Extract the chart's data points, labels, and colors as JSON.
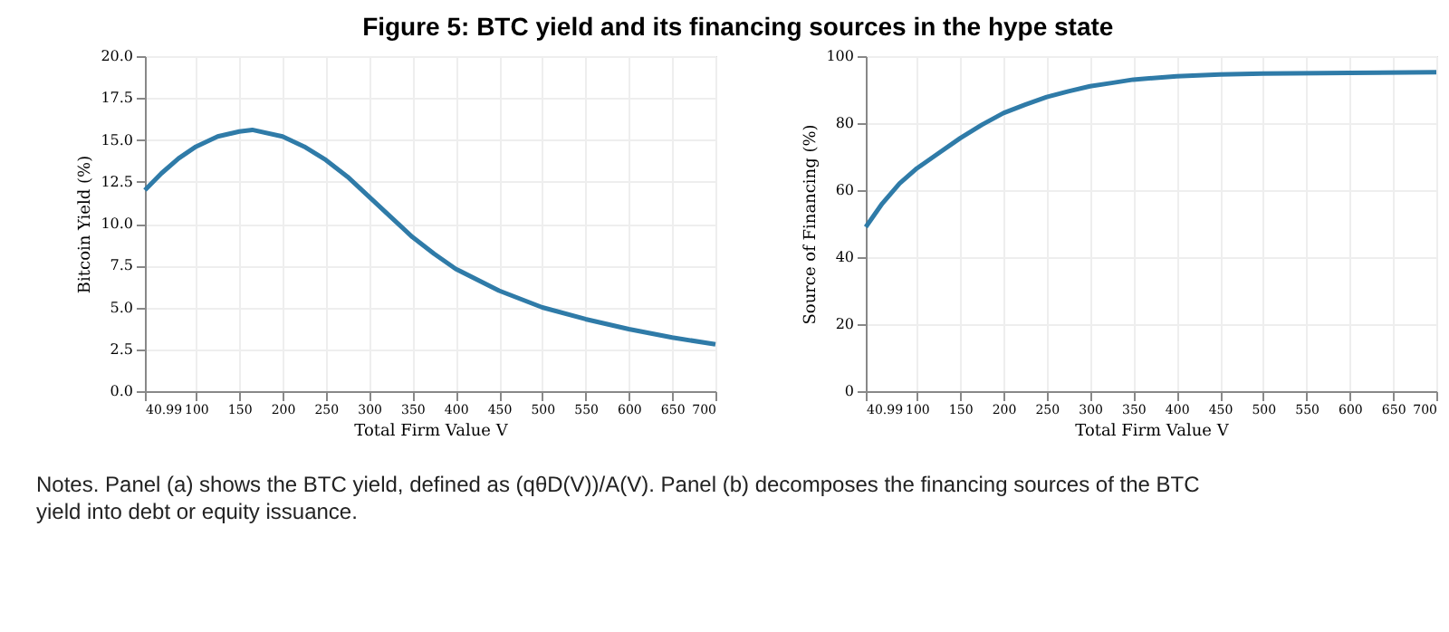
{
  "chart_data": [
    {
      "type": "line",
      "title": "Figure 5: BTC yield and its financing sources in the hype state",
      "annotations": [
        "Notes. Panel (a) shows the BTC yield, defined as (qθD(V))/A(V). Panel (b) decomposes the financing sources of the BTC yield into debt or equity issuance."
      ],
      "xlabel": "Total Firm Value V",
      "ylabel": "Bitcoin Yield (%)",
      "x": [
        40.99,
        60,
        80,
        100,
        125,
        150,
        165,
        200,
        225,
        250,
        275,
        300,
        325,
        350,
        375,
        400,
        450,
        500,
        550,
        600,
        650,
        700
      ],
      "series": [
        {
          "color": "#2f7ba8",
          "values": [
            12.0,
            13.0,
            13.9,
            14.6,
            15.2,
            15.5,
            15.6,
            15.2,
            14.6,
            13.8,
            12.8,
            11.6,
            10.4,
            9.2,
            8.2,
            7.3,
            6.0,
            5.0,
            4.3,
            3.7,
            3.2,
            2.8
          ]
        }
      ],
      "xlim": [
        40.99,
        700
      ],
      "xticks": [
        40.99,
        100,
        150,
        200,
        250,
        300,
        350,
        400,
        450,
        500,
        550,
        600,
        650,
        700
      ],
      "ylim": [
        0,
        20
      ],
      "yticks": [
        {
          "value": 0,
          "label": "0.0"
        },
        2.5,
        {
          "value": 5,
          "label": "5.0"
        },
        7.5,
        {
          "value": 10,
          "label": "10.0"
        },
        12.5,
        {
          "value": 15,
          "label": "15.0"
        },
        17.5,
        {
          "value": 20,
          "label": "20.0"
        }
      ],
      "grid": true,
      "line_style": "solid",
      "marker": "none"
    },
    {
      "type": "line",
      "xlabel": "Total Firm Value V",
      "ylabel": "Source of Financing (%)",
      "x": [
        40.99,
        60,
        80,
        100,
        125,
        150,
        175,
        200,
        225,
        250,
        275,
        300,
        325,
        350,
        400,
        450,
        500,
        600,
        700
      ],
      "series": [
        {
          "color": "#2f7ba8",
          "values": [
            49,
            56,
            62,
            66.5,
            71,
            75.5,
            79.5,
            83,
            85.5,
            87.8,
            89.5,
            91,
            92,
            93,
            94,
            94.5,
            94.8,
            95,
            95.2
          ]
        }
      ],
      "xlim": [
        40.99,
        700
      ],
      "xticks": [
        40.99,
        100,
        150,
        200,
        250,
        300,
        350,
        400,
        450,
        500,
        550,
        600,
        650,
        700
      ],
      "ylim": [
        0,
        100
      ],
      "yticks": [
        0,
        20,
        40,
        60,
        80,
        100
      ],
      "grid": true,
      "line_style": "solid",
      "marker": "none"
    }
  ]
}
